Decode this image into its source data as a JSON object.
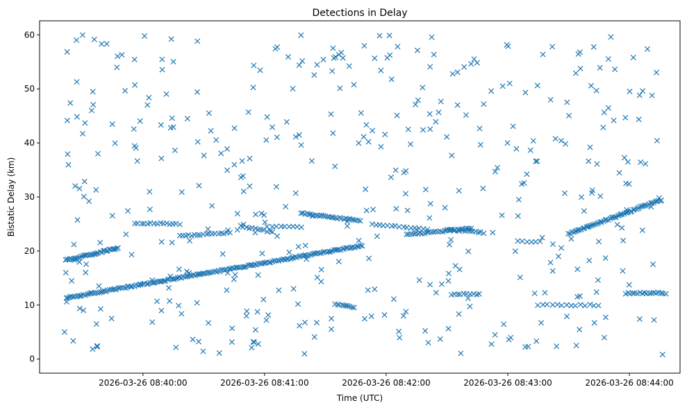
{
  "chart_data": {
    "type": "scatter",
    "title": "Detections in Delay",
    "xlabel": "Time (UTC)",
    "ylabel": "Bistatic Delay (km)",
    "marker": "x",
    "color": "#1f77b4",
    "xlim": [
      "2026-03-26 08:39:09",
      "2026-03-26 08:44:25"
    ],
    "ylim": [
      -2.6,
      62.6
    ],
    "x_ticks": [
      "2026-03-26 08:40:00",
      "2026-03-26 08:41:00",
      "2026-03-26 08:42:00",
      "2026-03-26 08:43:00",
      "2026-03-26 08:44:00"
    ],
    "y_ticks": [
      0,
      10,
      20,
      30,
      40,
      50,
      60
    ],
    "grid": false,
    "legend": "none",
    "tracks": [
      {
        "start": "2026-03-26 08:39:22",
        "end": "2026-03-26 08:41:48",
        "y_start": 11.3,
        "y_end": 21.0,
        "n": 170
      },
      {
        "start": "2026-03-26 08:39:22",
        "end": "2026-03-26 08:39:48",
        "y_start": 18.3,
        "y_end": 20.6,
        "n": 35
      },
      {
        "start": "2026-03-26 08:39:56",
        "end": "2026-03-26 08:40:18",
        "y_start": 25.2,
        "y_end": 25.0,
        "n": 15
      },
      {
        "start": "2026-03-26 08:40:18",
        "end": "2026-03-26 08:40:43",
        "y_start": 22.8,
        "y_end": 23.4,
        "n": 18
      },
      {
        "start": "2026-03-26 08:40:48",
        "end": "2026-03-26 08:41:04",
        "y_start": 24.6,
        "y_end": 23.5,
        "n": 12
      },
      {
        "start": "2026-03-26 08:41:04",
        "end": "2026-03-26 08:41:18",
        "y_start": 24.5,
        "y_end": 24.5,
        "n": 8
      },
      {
        "start": "2026-03-26 08:41:18",
        "end": "2026-03-26 08:41:47",
        "y_start": 27.0,
        "y_end": 25.6,
        "n": 30
      },
      {
        "start": "2026-03-26 08:41:53",
        "end": "2026-03-26 08:42:20",
        "y_start": 25.0,
        "y_end": 24.0,
        "n": 15
      },
      {
        "start": "2026-03-26 08:42:10",
        "end": "2026-03-26 08:42:42",
        "y_start": 23.0,
        "y_end": 24.2,
        "n": 30
      },
      {
        "start": "2026-03-26 08:42:30",
        "end": "2026-03-26 08:42:48",
        "y_start": 24.0,
        "y_end": 23.4,
        "n": 15
      },
      {
        "start": "2026-03-26 08:41:35",
        "end": "2026-03-26 08:41:44",
        "y_start": 10.2,
        "y_end": 9.6,
        "n": 10
      },
      {
        "start": "2026-03-26 08:42:32",
        "end": "2026-03-26 08:42:46",
        "y_start": 12.0,
        "y_end": 12.0,
        "n": 10
      },
      {
        "start": "2026-03-26 08:43:05",
        "end": "2026-03-26 08:43:16",
        "y_start": 21.8,
        "y_end": 21.8,
        "n": 6
      },
      {
        "start": "2026-03-26 08:43:30",
        "end": "2026-03-26 08:44:16",
        "y_start": 23.2,
        "y_end": 29.5,
        "n": 60
      },
      {
        "start": "2026-03-26 08:43:15",
        "end": "2026-03-26 08:43:45",
        "y_start": 10.0,
        "y_end": 10.0,
        "n": 14
      },
      {
        "start": "2026-03-26 08:43:58",
        "end": "2026-03-26 08:44:18",
        "y_start": 12.2,
        "y_end": 12.2,
        "n": 18
      }
    ]
  }
}
